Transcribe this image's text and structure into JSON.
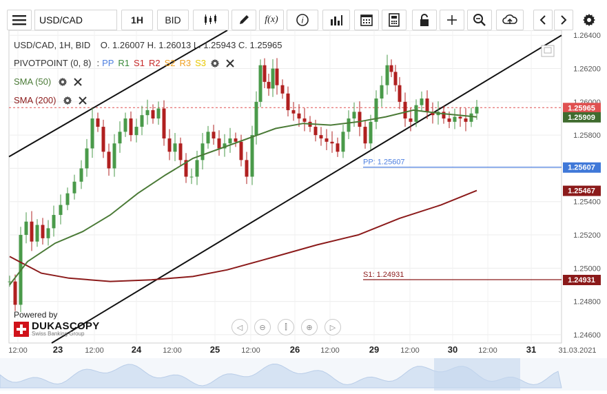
{
  "toolbar": {
    "menu_icon": "hamburger-icon",
    "symbol": "USD/CAD",
    "interval": "1H",
    "price_side": "BID",
    "icons": [
      "candles-icon",
      "draw-pencil-icon",
      "function-icon",
      "info-icon",
      "bar-chart-icon",
      "calendar-icon",
      "calculator-icon",
      "unlock-icon",
      "crosshair-icon",
      "zoom-icon",
      "cloud-upload-icon",
      "chevron-left-icon",
      "chevron-right-icon",
      "gear-icon"
    ],
    "fx_label": "f(x)"
  },
  "legend": {
    "header": "USD/CAD, 1H, BID",
    "ohlc": "O. 1.26007 H. 1.26013 L. 1.25943 C. 1.25965",
    "pivot_title": "PIVOTPOINT (0, 8)",
    "pivot_sep": ":",
    "pivot_levels": [
      {
        "label": "PP",
        "color": "#4d7fe0"
      },
      {
        "label": "R1",
        "color": "#3a8a3a"
      },
      {
        "label": "S1",
        "color": "#c62828"
      },
      {
        "label": "R2",
        "color": "#c62828"
      },
      {
        "label": "S2",
        "color": "#f0a020"
      },
      {
        "label": "R3",
        "color": "#f0a020"
      },
      {
        "label": "S3",
        "color": "#e8c800"
      }
    ],
    "sma50": "SMA (50)",
    "sma200": "SMA (200)",
    "sma50_color": "#4a7a36",
    "sma200_color": "#8b1a1a"
  },
  "chart_data": {
    "type": "candlestick",
    "symbol": "USD/CAD",
    "timeframe": "1H",
    "ylim": [
      1.2455,
      1.2643
    ],
    "y_ticks": [
      "1.24600",
      "1.24800",
      "1.25000",
      "1.25200",
      "1.25400",
      "1.25600",
      "1.25800",
      "1.26000",
      "1.26200",
      "1.26400"
    ],
    "x_ticks": [
      "12:00",
      "23",
      "12:00",
      "24",
      "12:00",
      "25",
      "12:00",
      "26",
      "12:00",
      "29",
      "12:00",
      "30",
      "12:00",
      "31",
      "31.03.2021"
    ],
    "last_price": "1.25965",
    "sma50_value": "1.25909",
    "sma200_value": "1.25467",
    "pp_label": "PP: 1.25607",
    "pp_value": "1.25607",
    "s1_label": "S1: 1.24931",
    "s1_value": "1.24931",
    "colors": {
      "up": "#4a9a4a",
      "down": "#b02020",
      "price_line": "#e05050",
      "sma50": "#4a7a36",
      "sma200": "#8b1a1a",
      "pp": "#4d7fe0",
      "s1": "#8b1a1a",
      "trend": "#111111"
    }
  },
  "watermark": {
    "powered_by": "Powered by",
    "brand": "DUKASCOPY",
    "sub": "Swiss Banking Group"
  },
  "nav_icons": [
    "scroll-left-icon",
    "zoom-out-icon",
    "reset-zoom-icon",
    "zoom-in-icon",
    "scroll-right-icon"
  ]
}
